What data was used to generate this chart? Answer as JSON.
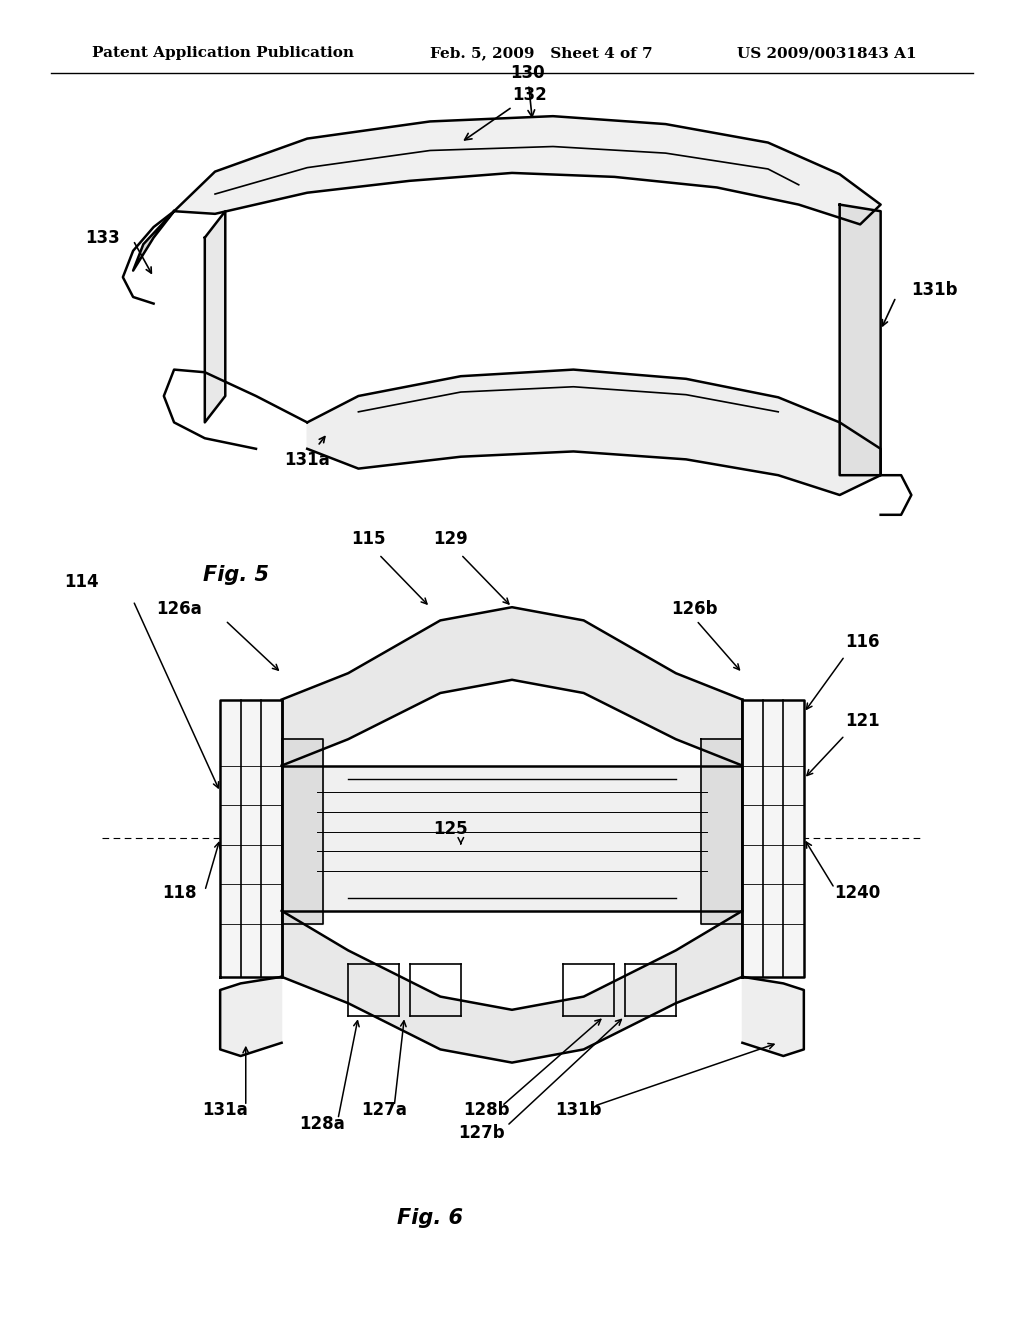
{
  "header_left": "Patent Application Publication",
  "header_mid": "Feb. 5, 2009   Sheet 4 of 7",
  "header_right": "US 2009/0031843 A1",
  "fig5_label": "Fig. 5",
  "fig6_label": "Fig. 6",
  "background": "#ffffff",
  "line_color": "#000000",
  "text_color": "#000000",
  "header_fontsize": 11,
  "label_fontsize": 12,
  "fig_label_fontsize": 14
}
